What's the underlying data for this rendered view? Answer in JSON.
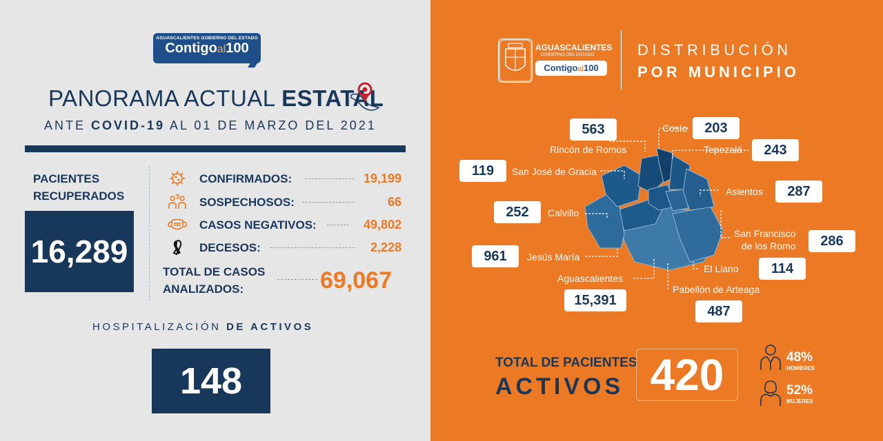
{
  "logo": {
    "small": "AGUASCALIENTES GOBIERNO DEL ESTADO",
    "big": "Contigo",
    "al": "al",
    "num": "100"
  },
  "header": {
    "title_light": "PANORAMA ACTUAL ",
    "title_bold": "ESTATAL",
    "sub_pre": "ANTE ",
    "sub_bold": "COVID-19",
    "sub_post": " AL 01 DE MARZO DEL 2021"
  },
  "recovered": {
    "label_line1": "PACIENTES",
    "label_line2": "RECUPERADOS",
    "value": "16,289"
  },
  "stats": [
    {
      "icon": "virus-icon",
      "label": "CONFIRMADOS:",
      "value": "19,199"
    },
    {
      "icon": "people-question-icon",
      "label": "SOSPECHOSOS:",
      "value": "66"
    },
    {
      "icon": "mask-icon",
      "label": "CASOS NEGATIVOS:",
      "value": "49,802"
    },
    {
      "icon": "mourning-ribbon-icon",
      "label": "DECESOS:",
      "value": "2,228"
    }
  ],
  "total": {
    "label_line1": "TOTAL DE CASOS",
    "label_line2": "ANALIZADOS:",
    "value": "69,067"
  },
  "hospital": {
    "label_light": "HOSPITALIZACIÓN ",
    "label_bold": "DE ACTIVOS",
    "value": "148"
  },
  "right_logo": {
    "title": "AGUASCALIENTES",
    "subtitle": "GOBIERNO DEL ESTADO",
    "brand": "Contigo",
    "al": "al",
    "num": "100"
  },
  "distribution": {
    "line1": "DISTRIBUCIÓN",
    "line2": "POR MUNICIPIO"
  },
  "municipalities": [
    {
      "name": "Rincón de Romos",
      "value": "563"
    },
    {
      "name": "Cosío",
      "value": "203"
    },
    {
      "name": "Tepezalá",
      "value": "243"
    },
    {
      "name": "San José de Gracia",
      "value": "119"
    },
    {
      "name": "Asientos",
      "value": "287"
    },
    {
      "name": "Calvillo",
      "value": "252"
    },
    {
      "name": "San Francisco",
      "name2": "de los Romo",
      "value": "286"
    },
    {
      "name": "Jesús María",
      "value": "961"
    },
    {
      "name": "El Llano",
      "value": "114"
    },
    {
      "name": "Aguascalientes",
      "value": "15,391"
    },
    {
      "name": "Pabellón de Arteaga",
      "value": "487"
    }
  ],
  "active": {
    "line1": "TOTAL DE PACIENTES",
    "line2": "ACTIVOS",
    "value": "420"
  },
  "gender": [
    {
      "icon": "man-icon",
      "pct": "48%",
      "label": "HOMBRES"
    },
    {
      "icon": "woman-icon",
      "pct": "52%",
      "label": "MUJERES"
    }
  ],
  "colors": {
    "navy": "#18385b",
    "orange": "#ec7a24",
    "light_bg": "#e6e6e6"
  }
}
